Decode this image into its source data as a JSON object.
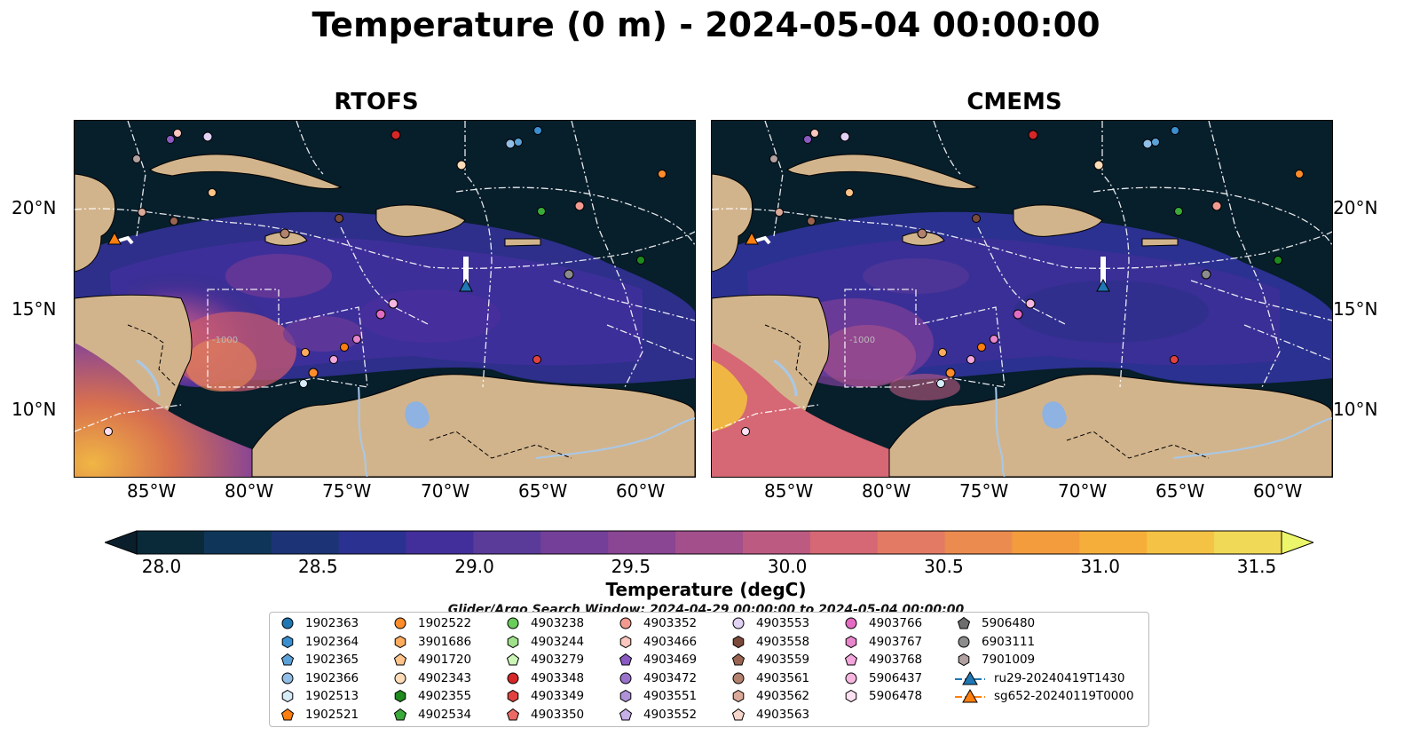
{
  "title": "Temperature (0 m) - 2024-05-04 00:00:00",
  "panels": [
    {
      "name": "RTOFS"
    },
    {
      "name": "CMEMS"
    }
  ],
  "axes": {
    "lon_ticks": [
      "85°W",
      "80°W",
      "75°W",
      "70°W",
      "65°W",
      "60°W"
    ],
    "lat_ticks": [
      "20°N",
      "15°N",
      "10°N"
    ],
    "contour_label": "-1000"
  },
  "colorbar": {
    "label": "Temperature (degC)",
    "ticks": [
      "28.0",
      "28.5",
      "29.0",
      "29.5",
      "30.0",
      "30.5",
      "31.0",
      "31.5"
    ],
    "min": 28.0,
    "max": 31.5,
    "colors": [
      "#0a2a3a",
      "#0f3659",
      "#1c3376",
      "#2b3190",
      "#432f9b",
      "#5a3b9a",
      "#733f98",
      "#8a4593",
      "#a34f8c",
      "#bd5a82",
      "#d56874",
      "#e37a63",
      "#eb8b4f",
      "#f29c3e",
      "#f5ae3a",
      "#f4c345",
      "#f0d957"
    ],
    "extend_low": "#0a1f2b",
    "extend_high": "#ecf66a",
    "land": "#d2b48c",
    "lakes": "#8eb2e2",
    "rivers": "#a8c8e8",
    "ocean_dark": "#071e2b"
  },
  "search_window": "Glider/Argo Search Window: 2024-04-29 00:00:00 to 2024-05-04 00:00:00",
  "legend": [
    {
      "label": "1902363",
      "marker": "circle",
      "color": "#1f77b4"
    },
    {
      "label": "1902364",
      "marker": "hexagon",
      "color": "#3a8fd0"
    },
    {
      "label": "1902365",
      "marker": "pentagon",
      "color": "#5aa1d8"
    },
    {
      "label": "1902366",
      "marker": "circle",
      "color": "#91bde6"
    },
    {
      "label": "1902513",
      "marker": "hexagon",
      "color": "#d6ecf9"
    },
    {
      "label": "1902521",
      "marker": "pentagon",
      "color": "#ff7f0e"
    },
    {
      "label": "1902522",
      "marker": "circle",
      "color": "#ff8c2a"
    },
    {
      "label": "3901686",
      "marker": "hexagon",
      "color": "#ffab5e"
    },
    {
      "label": "4901720",
      "marker": "pentagon",
      "color": "#ffc48a"
    },
    {
      "label": "4902343",
      "marker": "circle",
      "color": "#ffdcb8"
    },
    {
      "label": "4902355",
      "marker": "hexagon",
      "color": "#1f8a1f"
    },
    {
      "label": "4902534",
      "marker": "pentagon",
      "color": "#3aaa3a"
    },
    {
      "label": "4903238",
      "marker": "circle",
      "color": "#6acc5a"
    },
    {
      "label": "4903244",
      "marker": "hexagon",
      "color": "#a0e08a"
    },
    {
      "label": "4903279",
      "marker": "pentagon",
      "color": "#ccf5b8"
    },
    {
      "label": "4903348",
      "marker": "circle",
      "color": "#d62728"
    },
    {
      "label": "4903349",
      "marker": "hexagon",
      "color": "#e0423f"
    },
    {
      "label": "4903350",
      "marker": "pentagon",
      "color": "#ec6a64"
    },
    {
      "label": "4903352",
      "marker": "circle",
      "color": "#f29a90"
    },
    {
      "label": "4903466",
      "marker": "hexagon",
      "color": "#fbc6bd"
    },
    {
      "label": "4903469",
      "marker": "pentagon",
      "color": "#8a5ac2"
    },
    {
      "label": "4903472",
      "marker": "circle",
      "color": "#9a72cc"
    },
    {
      "label": "4903551",
      "marker": "hexagon",
      "color": "#b092d8"
    },
    {
      "label": "4903552",
      "marker": "pentagon",
      "color": "#c7b0e6"
    },
    {
      "label": "4903553",
      "marker": "circle",
      "color": "#e2d2f4"
    },
    {
      "label": "4903558",
      "marker": "hexagon",
      "color": "#7a4a3a"
    },
    {
      "label": "4903559",
      "marker": "pentagon",
      "color": "#9a6452"
    },
    {
      "label": "4903561",
      "marker": "circle",
      "color": "#b3826f"
    },
    {
      "label": "4903562",
      "marker": "hexagon",
      "color": "#dba99a"
    },
    {
      "label": "4903563",
      "marker": "pentagon",
      "color": "#f7d6cc"
    },
    {
      "label": "4903766",
      "marker": "circle",
      "color": "#e36cc2"
    },
    {
      "label": "4903767",
      "marker": "hexagon",
      "color": "#e886cc"
    },
    {
      "label": "4903768",
      "marker": "pentagon",
      "color": "#f2a6dc"
    },
    {
      "label": "5906437",
      "marker": "circle",
      "color": "#f7b6e0"
    },
    {
      "label": "5906478",
      "marker": "hexagon",
      "color": "#fde0f2"
    },
    {
      "label": "ru29-20240419T1430",
      "marker": "triangle-line",
      "color": "#1f77b4"
    },
    {
      "label": "sg652-20240119T0000",
      "marker": "triangle-line",
      "color": "#ff7f0e"
    },
    {
      "label": "5906480",
      "marker": "pentagon",
      "color": "#6e6e6e"
    },
    {
      "label": "6903111",
      "marker": "circle",
      "color": "#8c8c8c"
    },
    {
      "label": "7901009",
      "marker": "hexagon",
      "color": "#b0a0a0"
    }
  ]
}
